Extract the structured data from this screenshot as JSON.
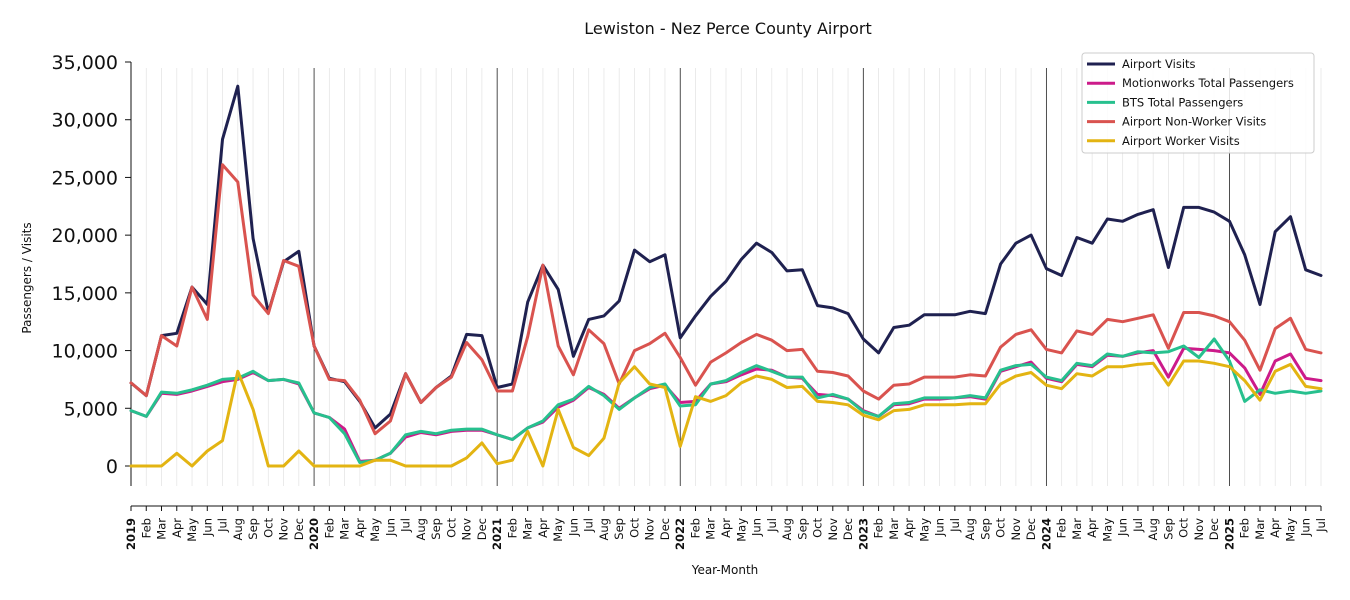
{
  "chart_data": {
    "type": "line",
    "title": "Lewiston - Nez Perce County Airport",
    "xlabel": "Year-Month",
    "ylabel": "Passengers / Visits",
    "ylim": [
      -1500,
      35000
    ],
    "yticks": [
      0,
      5000,
      10000,
      15000,
      20000,
      25000,
      30000,
      35000
    ],
    "ytick_labels": [
      "0",
      "5,000",
      "10,000",
      "15,000",
      "20,000",
      "25,000",
      "30,000",
      "35,000"
    ],
    "legend_position": "top-right",
    "x": [
      "2019",
      "Feb",
      "Mar",
      "Apr",
      "May",
      "Jun",
      "Jul",
      "Aug",
      "Sep",
      "Oct",
      "Nov",
      "Dec",
      "2020",
      "Feb",
      "Mar",
      "Apr",
      "May",
      "Jun",
      "Jul",
      "Aug",
      "Sep",
      "Oct",
      "Nov",
      "Dec",
      "2021",
      "Feb",
      "Mar",
      "Apr",
      "May",
      "Jun",
      "Jul",
      "Aug",
      "Sep",
      "Oct",
      "Nov",
      "Dec",
      "2022",
      "Feb",
      "Mar",
      "Apr",
      "May",
      "Jun",
      "Jul",
      "Aug",
      "Sep",
      "Oct",
      "Nov",
      "Dec",
      "2023",
      "Feb",
      "Mar",
      "Apr",
      "May",
      "Jun",
      "Jul",
      "Aug",
      "Sep",
      "Oct",
      "Nov",
      "Dec",
      "2024",
      "Feb",
      "Mar",
      "Apr",
      "May",
      "Jun",
      "Jul",
      "Aug",
      "Sep",
      "Oct",
      "Nov",
      "Dec",
      "2025",
      "Feb",
      "Mar",
      "Apr",
      "May",
      "Jun",
      "Jul"
    ],
    "year_labels": [
      "2019",
      "2020",
      "2021",
      "2022",
      "2023",
      "2024",
      "2025"
    ],
    "series": [
      {
        "name": "Airport Visits",
        "color": "#1f2150",
        "values": [
          7200,
          6100,
          11300,
          11500,
          15500,
          14000,
          28300,
          32900,
          19700,
          13300,
          17700,
          18600,
          10400,
          7600,
          7300,
          5600,
          3300,
          4500,
          8000,
          5500,
          6800,
          7800,
          11400,
          11300,
          6800,
          7100,
          14200,
          17400,
          15300,
          9500,
          12700,
          13000,
          14300,
          18700,
          17700,
          18300,
          11100,
          13000,
          14700,
          16000,
          17900,
          19300,
          18500,
          16900,
          17000,
          13900,
          13700,
          13200,
          11000,
          9800,
          12000,
          12200,
          13100,
          13100,
          13100,
          13400,
          13200,
          17500,
          19300,
          20000,
          17100,
          16500,
          19800,
          19300,
          21400,
          21200,
          21800,
          22200,
          17200,
          22400,
          22400,
          22000,
          21200,
          18300,
          14000,
          20300,
          21600,
          17000,
          16500
        ]
      },
      {
        "name": "Motionworks Total Passengers",
        "color": "#cc1b8a",
        "values": [
          4800,
          4300,
          6300,
          6200,
          6500,
          6900,
          7300,
          7500,
          8100,
          7400,
          7500,
          7100,
          4600,
          4200,
          3200,
          400,
          500,
          1100,
          2500,
          2900,
          2700,
          3000,
          3100,
          3100,
          2700,
          2300,
          3300,
          3800,
          5100,
          5700,
          6800,
          6200,
          5000,
          5900,
          6700,
          7000,
          5500,
          5600,
          7100,
          7300,
          7900,
          8400,
          8300,
          7700,
          7600,
          6200,
          6100,
          5800,
          4800,
          4300,
          5300,
          5400,
          5800,
          5800,
          5900,
          6000,
          5800,
          8200,
          8600,
          9000,
          7600,
          7300,
          8800,
          8600,
          9600,
          9500,
          9800,
          10000,
          7700,
          10200,
          10100,
          10000,
          9800,
          8500,
          6200,
          9100,
          9700,
          7600,
          7400
        ]
      },
      {
        "name": "BTS Total Passengers",
        "color": "#27c08e",
        "values": [
          4800,
          4300,
          6400,
          6300,
          6600,
          7000,
          7500,
          7600,
          8200,
          7400,
          7500,
          7200,
          4600,
          4200,
          2800,
          300,
          500,
          1100,
          2700,
          3000,
          2800,
          3100,
          3200,
          3200,
          2700,
          2300,
          3300,
          3900,
          5300,
          5800,
          6900,
          6100,
          4900,
          5900,
          6800,
          7100,
          5200,
          5300,
          7100,
          7400,
          8100,
          8700,
          8200,
          7700,
          7700,
          5900,
          6200,
          5800,
          4700,
          4300,
          5400,
          5500,
          5900,
          5900,
          5900,
          6100,
          5900,
          8300,
          8700,
          8800,
          7700,
          7400,
          8900,
          8700,
          9700,
          9500,
          9900,
          9800,
          9900,
          10400,
          9400,
          11000,
          9100,
          5600,
          6600,
          6300,
          6500,
          6300,
          6500
        ]
      },
      {
        "name": "Airport Non-Worker Visits",
        "color": "#d9534f",
        "values": [
          7200,
          6100,
          11300,
          10400,
          15500,
          12700,
          26100,
          24600,
          14800,
          13200,
          17800,
          17300,
          10400,
          7500,
          7400,
          5700,
          2800,
          3900,
          8000,
          5500,
          6800,
          7700,
          10700,
          9200,
          6500,
          6500,
          11200,
          17400,
          10400,
          7900,
          11800,
          10600,
          7100,
          10000,
          10600,
          11500,
          9400,
          7000,
          9000,
          9800,
          10700,
          11400,
          10900,
          10000,
          10100,
          8200,
          8100,
          7800,
          6500,
          5800,
          7000,
          7100,
          7700,
          7700,
          7700,
          7900,
          7800,
          10300,
          11400,
          11800,
          10100,
          9800,
          11700,
          11400,
          12700,
          12500,
          12800,
          13100,
          10200,
          13300,
          13300,
          13000,
          12500,
          10900,
          8300,
          11900,
          12800,
          10100,
          9800
        ]
      },
      {
        "name": "Airport Worker Visits",
        "color": "#e3b412",
        "values": [
          0,
          0,
          0,
          1100,
          0,
          1300,
          2200,
          8200,
          4900,
          0,
          0,
          1300,
          0,
          0,
          0,
          0,
          500,
          500,
          0,
          0,
          0,
          0,
          700,
          2000,
          200,
          500,
          3000,
          0,
          4900,
          1600,
          900,
          2400,
          7200,
          8600,
          7100,
          6800,
          1700,
          6000,
          5600,
          6100,
          7200,
          7800,
          7500,
          6800,
          6900,
          5600,
          5500,
          5300,
          4400,
          4000,
          4800,
          4900,
          5300,
          5300,
          5300,
          5400,
          5400,
          7100,
          7800,
          8100,
          7000,
          6700,
          8000,
          7800,
          8600,
          8600,
          8800,
          8900,
          7000,
          9100,
          9100,
          8900,
          8600,
          7400,
          5700,
          8200,
          8800,
          6900,
          6700
        ]
      }
    ]
  }
}
